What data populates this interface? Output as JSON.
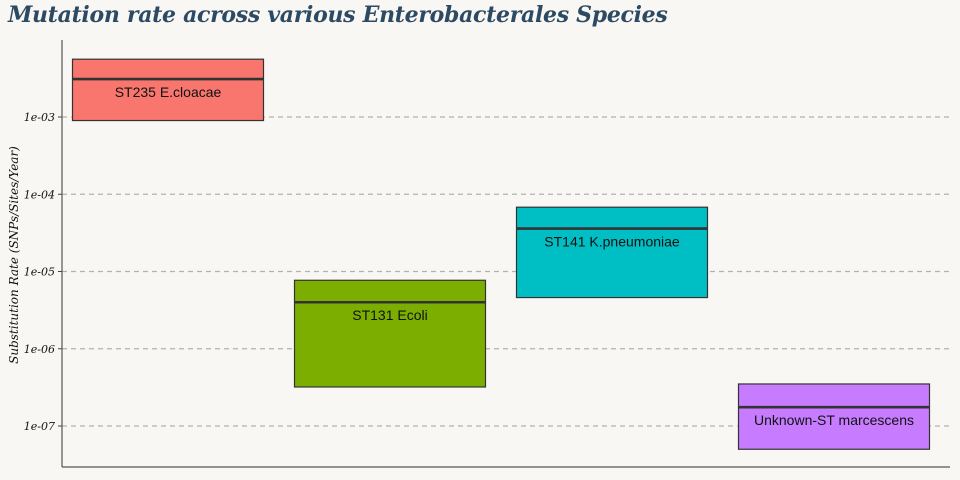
{
  "chart_data": {
    "type": "boxplot",
    "title": "Mutation rate across various Enterobacterales Species",
    "xlabel": "",
    "ylabel": "Substitution Rate (SNPs/Sites/Year)",
    "yscale": "log",
    "ylim": [
      2.5e-08,
      0.011
    ],
    "yticks": [
      1e-07,
      1e-06,
      1e-05,
      0.0001,
      0.001
    ],
    "ytick_labels": [
      "1e-07",
      "1e-06",
      "1e-05",
      "1e-04",
      "1e-03"
    ],
    "grid": "horizontal dashed",
    "categories": [
      "ST235 E.cloacae",
      "ST131 Ecoli",
      "ST141 K.pneumoniae",
      "Unknown-ST marcescens"
    ],
    "boxes": [
      {
        "label": "ST235 E.cloacae",
        "low": 0.0009,
        "median": 0.0031,
        "high": 0.0056,
        "color": "#f8766d"
      },
      {
        "label": "ST131 Ecoli",
        "low": 3.2e-07,
        "median": 4e-06,
        "high": 7.7e-06,
        "color": "#7cae00"
      },
      {
        "label": "ST141 K.pneumoniae",
        "low": 4.6e-06,
        "median": 3.6e-05,
        "high": 6.8e-05,
        "color": "#00bfc4"
      },
      {
        "label": "Unknown-ST marcescens",
        "low": 5e-08,
        "median": 1.75e-07,
        "high": 3.5e-07,
        "color": "#c77cff"
      }
    ]
  }
}
